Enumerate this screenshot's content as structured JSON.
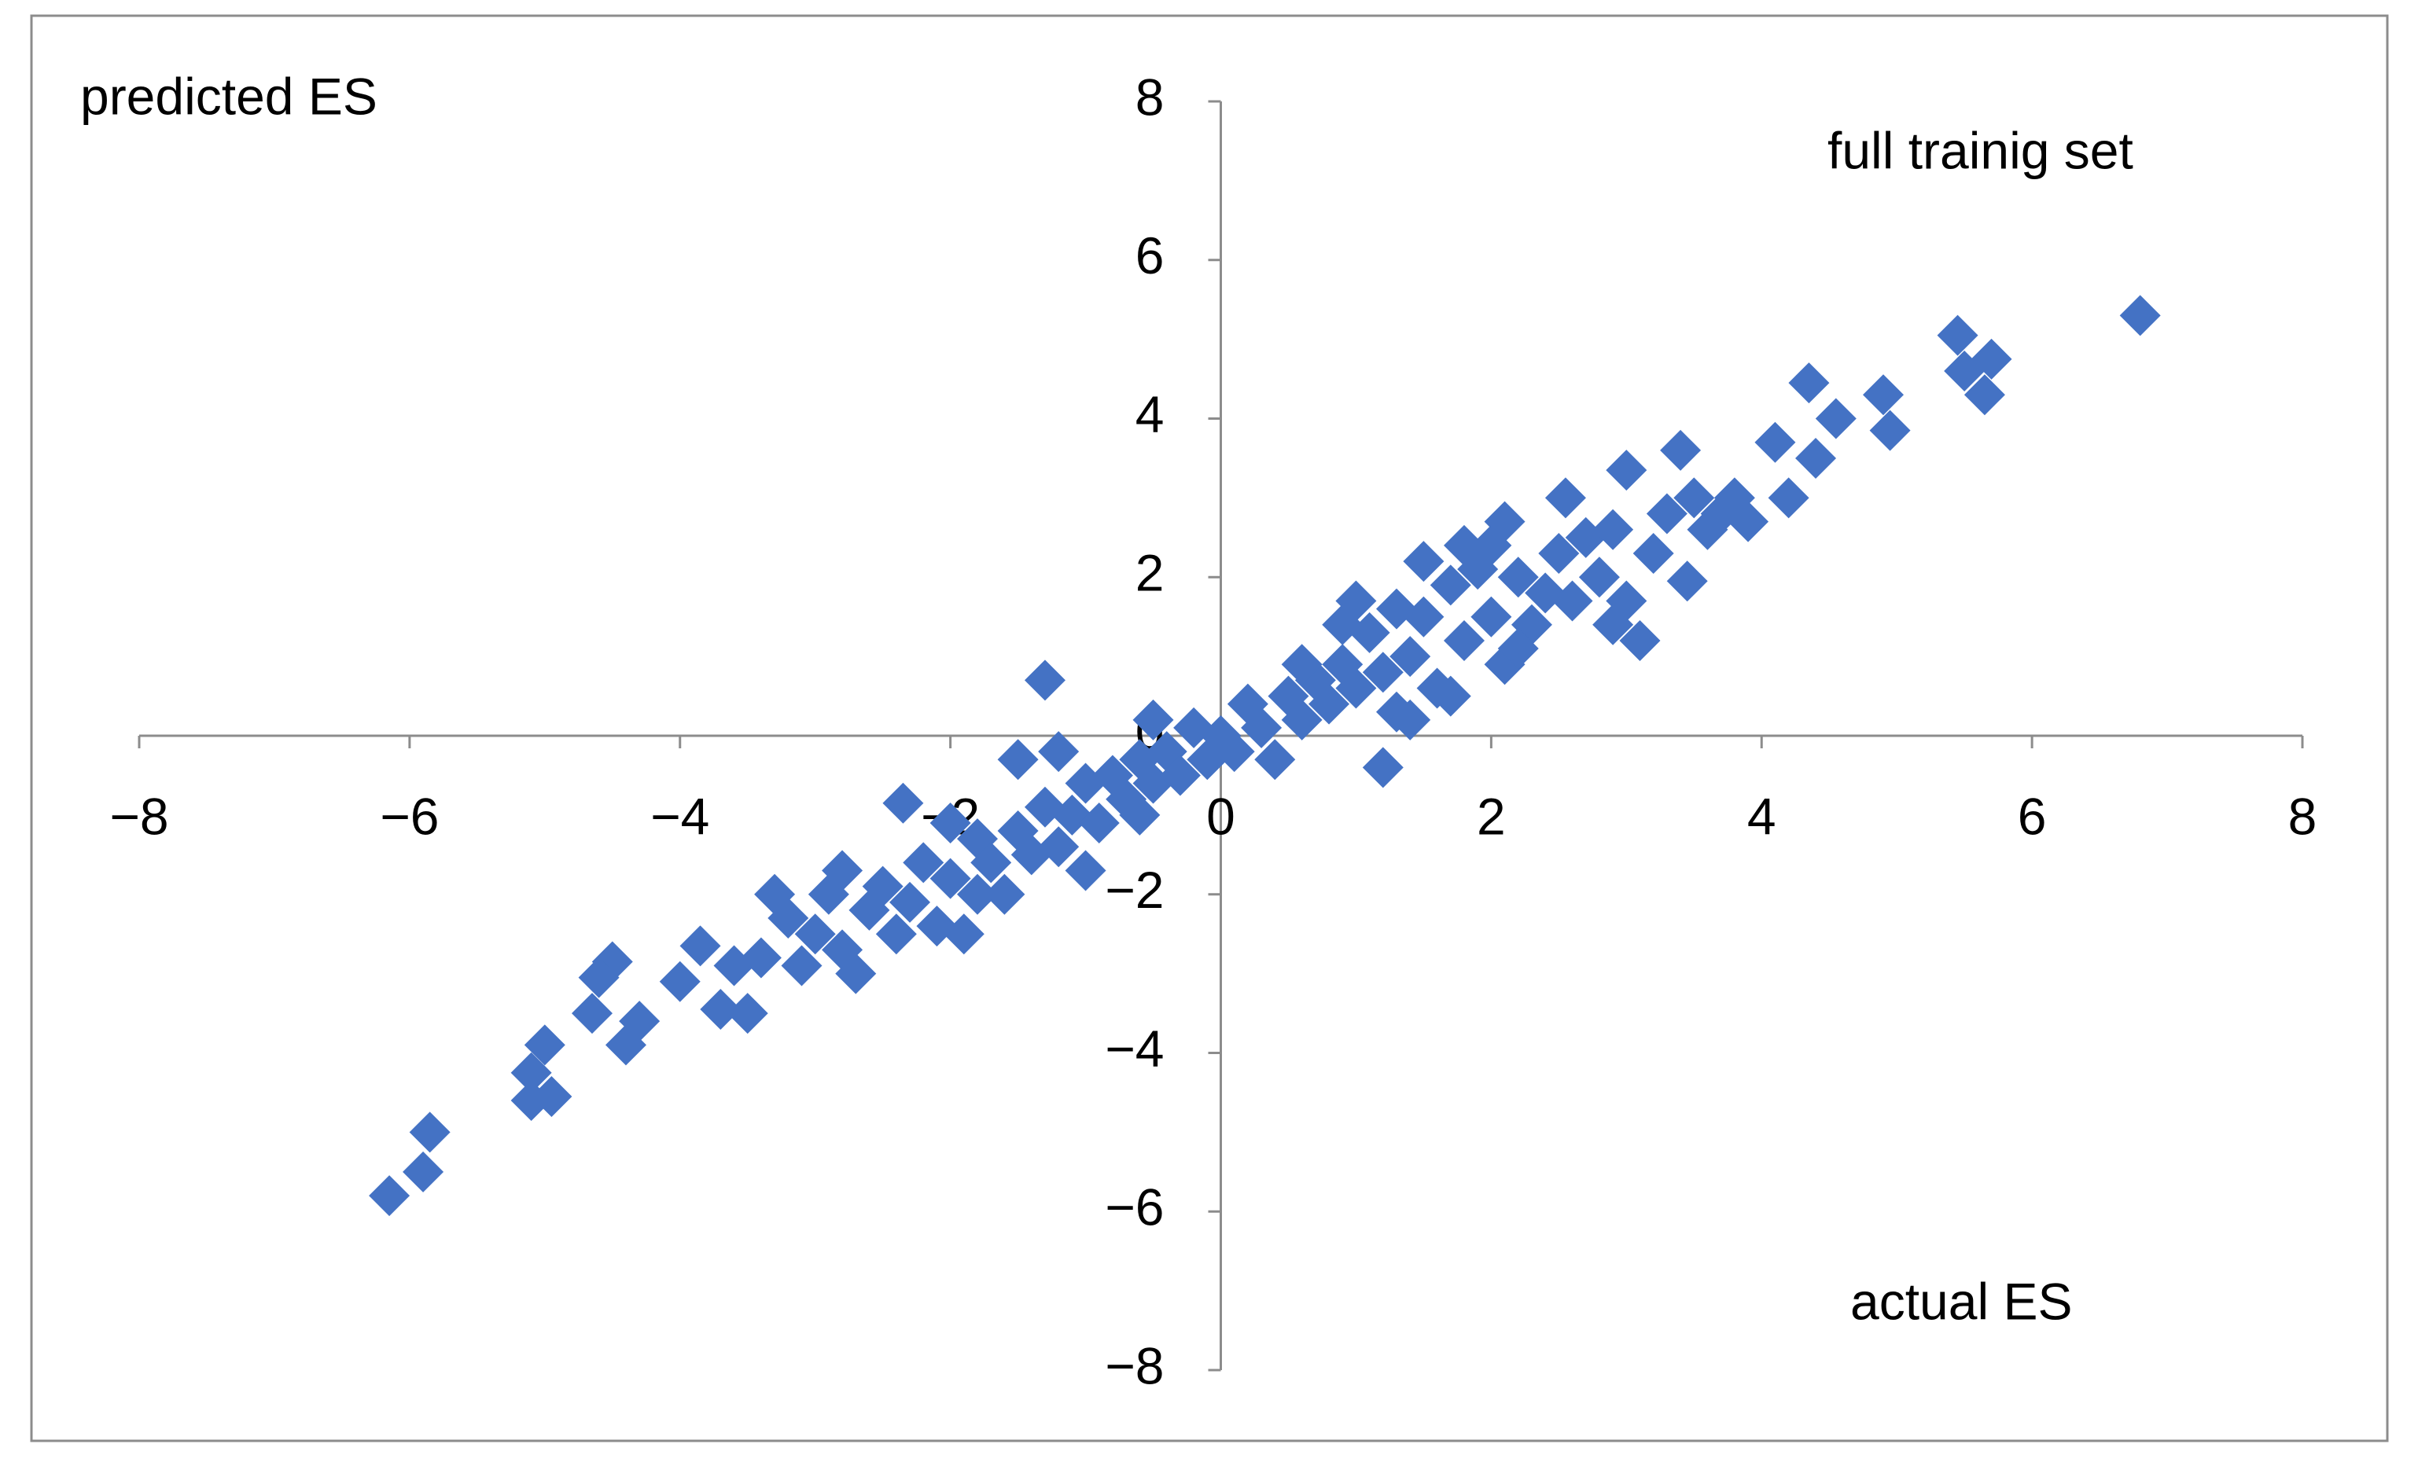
{
  "chart_data": {
    "type": "scatter",
    "title": "full trainig set",
    "xlabel": "actual ES",
    "ylabel": "predicted ES",
    "color": "#4472c4",
    "xlim": [
      -8,
      8
    ],
    "ylim": [
      -8,
      8
    ],
    "xticks": [
      {
        "value": -8,
        "label": "−8"
      },
      {
        "value": -6,
        "label": "−6"
      },
      {
        "value": -4,
        "label": "−4"
      },
      {
        "value": -2,
        "label": "−2"
      },
      0,
      2,
      4,
      6,
      8
    ],
    "yticks": [
      {
        "value": -8,
        "label": "−8"
      },
      {
        "value": -6,
        "label": "−6"
      },
      {
        "value": -4,
        "label": "−4"
      },
      {
        "value": -2,
        "label": "−2"
      },
      0,
      2,
      4,
      6,
      8
    ],
    "x": [
      6.8,
      5.45,
      5.5,
      5.7,
      5.65,
      4.35,
      4.9,
      4.95,
      4.55,
      4.4,
      4.1,
      4.2,
      3.4,
      3.8,
      3.9,
      3.45,
      3.6,
      3.0,
      2.55,
      3.1,
      2.9,
      2.1,
      1.2,
      -1.3,
      -6.15,
      -5.85,
      -5.9,
      -5.1,
      -5.1,
      -4.95,
      -5.0,
      -4.65,
      -4.5,
      -4.6,
      -4.4,
      -4.3,
      -4.0,
      -3.85,
      -3.7,
      -3.5,
      -2.35,
      -3.4,
      -3.2,
      -3.1,
      -3.0,
      -2.9,
      -2.8,
      -2.7,
      -2.6,
      -2.5,
      -2.4,
      -2.3,
      -2.2,
      -2.1,
      -2.0,
      -1.9,
      -1.8,
      -1.7,
      -1.6,
      -1.5,
      -1.4,
      -1.3,
      -1.2,
      -1.1,
      -1.0,
      -0.9,
      -0.8,
      -0.7,
      -0.6,
      -0.5,
      -0.4,
      -0.3,
      -0.2,
      -0.1,
      0,
      0.1,
      0.2,
      0.3,
      0.4,
      0.5,
      0.6,
      0.7,
      0.8,
      0.9,
      1.0,
      1.1,
      1.2,
      1.3,
      1.4,
      1.5,
      1.6,
      1.7,
      1.8,
      1.9,
      2.0,
      2.1,
      2.2,
      2.3,
      2.4,
      2.5,
      2.6,
      2.7,
      2.8,
      3.0,
      3.2,
      3.3,
      3.5,
      3.7,
      -1.5,
      -1.0,
      -0.5,
      1.0,
      1.5,
      1.3,
      1.7,
      2.0,
      -2.0,
      -3.3,
      -3.6,
      -2.8,
      -1.2,
      1.8,
      2.2,
      0.9,
      0.6,
      -0.6,
      1.4,
      2.9,
      -1.8
    ],
    "values": [
      5.3,
      5.05,
      4.6,
      4.75,
      4.3,
      4.45,
      4.3,
      3.85,
      4.0,
      3.5,
      3.7,
      3.0,
      3.6,
      3.0,
      2.7,
      1.95,
      2.6,
      3.35,
      3.0,
      1.2,
      1.4,
      2.7,
      -0.4,
      0.7,
      -5.8,
      -5.0,
      -5.5,
      -4.25,
      -4.6,
      -4.55,
      -3.9,
      -3.5,
      -2.85,
      -3.05,
      -3.9,
      -3.6,
      -3.1,
      -2.65,
      -3.45,
      -3.5,
      -0.85,
      -2.8,
      -2.3,
      -2.9,
      -2.5,
      -2.0,
      -2.7,
      -3.0,
      -2.2,
      -1.9,
      -2.5,
      -2.1,
      -1.6,
      -2.4,
      -1.8,
      -2.5,
      -1.3,
      -1.6,
      -2.0,
      -1.2,
      -1.5,
      -0.9,
      -1.4,
      -1.0,
      -0.6,
      -1.1,
      -0.5,
      -0.8,
      -0.3,
      -0.6,
      -0.2,
      -0.5,
      0.1,
      -0.3,
      0,
      -0.2,
      0.4,
      0.1,
      -0.3,
      0.5,
      0.2,
      0.7,
      0.4,
      0.9,
      0.6,
      1.3,
      0.8,
      1.6,
      1.0,
      1.5,
      0.6,
      1.9,
      1.2,
      2.1,
      1.5,
      0.9,
      2.0,
      1.4,
      1.8,
      2.3,
      1.7,
      2.5,
      2.0,
      1.7,
      2.3,
      2.8,
      3.0,
      2.8,
      -0.3,
      -1.7,
      0.2,
      1.7,
      2.2,
      0.3,
      0.5,
      2.4,
      -1.1,
      -2.0,
      -2.9,
      -1.7,
      -0.2,
      2.4,
      1.1,
      1.4,
      0.9,
      -1.0,
      0.2,
      2.6,
      -2.0
    ]
  }
}
